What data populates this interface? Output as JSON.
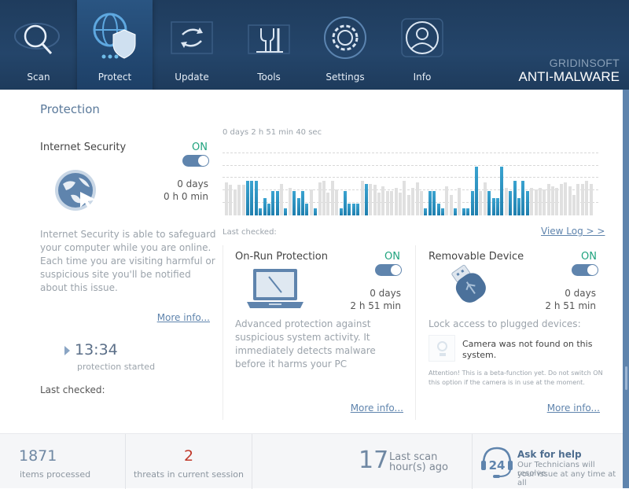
{
  "nav": {
    "items": [
      {
        "label": "Scan",
        "icon": "magnifier-eye-icon"
      },
      {
        "label": "Protect",
        "icon": "globe-shield-icon",
        "active": true
      },
      {
        "label": "Update",
        "icon": "refresh-icon"
      },
      {
        "label": "Tools",
        "icon": "wrench-tools-icon"
      },
      {
        "label": "Settings",
        "icon": "gear-icon"
      },
      {
        "label": "Info",
        "icon": "user-profile-icon"
      }
    ],
    "brand_top": "GRIDINSOFT",
    "brand_bottom": "ANTI-MALWARE"
  },
  "page": {
    "title": "Protection"
  },
  "internet_security": {
    "title": "Internet Security",
    "state": "ON",
    "days": "0 days",
    "time": "0 h 0 min",
    "description": "Internet Security is able to safeguard your computer while you are online. Each time you are visiting harmful or suspicious site you'll  be notified about this issue.",
    "more_info": "More info...",
    "started_time": "13:34",
    "started_label": "protection started",
    "last_checked": "Last checked:"
  },
  "activity": {
    "uptime": "0 days 2 h 51 min 40 sec",
    "last_checked": "Last checked:",
    "view_log": "View Log > >"
  },
  "on_run": {
    "title": "On-Run Protection",
    "state": "ON",
    "days": "0 days",
    "time": "2 h 51 min",
    "description": "Advanced protection against suspicious system activity. It immediately detects malware before it harms your PC",
    "more_info": "More info..."
  },
  "removable": {
    "title": "Removable Device",
    "state": "ON",
    "days": "0 days",
    "time": "2 h 51 min",
    "lock_label": "Lock access to plugged devices:",
    "camera_msg": "Camera was not found on this system.",
    "attention": "Attention! This is a beta-function yet. Do not switch ON this option if the camera is in use at the moment.",
    "more_info": "More info..."
  },
  "footer": {
    "items_count": "1871",
    "items_label": "items processed",
    "threats_count": "2",
    "threats_label": "threats in current session",
    "last_scan_num": "17",
    "last_scan_line1": "Last scan",
    "last_scan_line2": "hour(s) ago",
    "help_badge": "24",
    "help_title": "Ask for help",
    "help_line1": "Our Technicians will resolve",
    "help_line2": "your issue at any time at all"
  },
  "colors": {
    "header_bg": "#24456a",
    "accent": "#5f84ad",
    "on_green": "#20a37e",
    "threat_red": "#c0392b",
    "bar_active": "#2a8fc0",
    "bar_idle": "#e0e0e0"
  },
  "chart_data": {
    "type": "bar",
    "title": "0 days 2 h 51 min 40 sec",
    "xlabel": "",
    "ylabel": "",
    "grid": true,
    "ylim": [
      0,
      80
    ],
    "series": [
      {
        "name": "activity",
        "values": [
          38,
          35,
          30,
          35,
          35,
          40,
          40,
          40,
          8,
          20,
          14,
          28,
          28,
          36,
          8,
          32,
          28,
          20,
          28,
          14,
          30,
          8,
          38,
          40,
          26,
          40,
          30,
          8,
          28,
          14,
          14,
          14,
          40,
          36,
          36,
          35,
          26,
          34,
          28,
          28,
          32,
          26,
          40,
          24,
          32,
          38,
          28,
          8,
          28,
          28,
          14,
          8,
          34,
          24,
          8,
          32,
          8,
          8,
          28,
          56,
          28,
          38,
          28,
          20,
          20,
          56,
          32,
          28,
          40,
          20,
          40,
          28,
          32,
          30,
          32,
          30,
          36,
          34,
          32,
          36,
          38,
          34,
          24,
          36,
          36,
          40,
          36
        ]
      },
      {
        "name": "active_flag",
        "values": [
          0,
          0,
          0,
          0,
          0,
          1,
          1,
          1,
          1,
          1,
          1,
          1,
          1,
          0,
          1,
          0,
          1,
          1,
          1,
          1,
          0,
          1,
          0,
          0,
          0,
          0,
          0,
          1,
          1,
          1,
          1,
          1,
          0,
          1,
          0,
          0,
          0,
          0,
          0,
          0,
          0,
          0,
          0,
          0,
          0,
          0,
          0,
          1,
          1,
          1,
          1,
          1,
          0,
          0,
          1,
          0,
          1,
          1,
          1,
          1,
          0,
          0,
          1,
          1,
          1,
          1,
          0,
          1,
          1,
          1,
          1,
          1,
          0,
          0,
          0,
          0,
          0,
          0,
          0,
          0,
          0,
          0,
          0,
          0,
          0,
          0,
          0
        ]
      }
    ]
  }
}
